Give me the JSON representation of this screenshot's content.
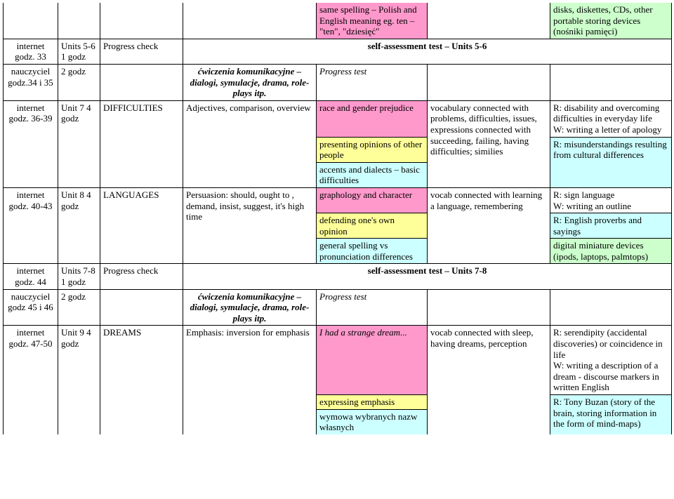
{
  "colors": {
    "pink": "#ff99cc",
    "yellow": "#ffff99",
    "blue": "#ccffff",
    "green": "#ccffcc"
  },
  "cells": {
    "r0_e": "same spelling – Polish and English meaning eg. ten – \"ten\", \"dziesięć\"",
    "r0_g": "disks, diskettes, CDs, other portable storing devices (nośniki pamięci)",
    "r1_a": "internet godz. 33",
    "r1_b": "Units 5-6 1 godz",
    "r1_c": "Progress check",
    "r1_center": "self-assessment test – Units 5-6",
    "r2_a": "nauczyciel godz.34 i 35",
    "r2_b": "2 godz",
    "r2_d": "ćwiczenia komunikacyjne – dialogi, symulacje, drama, role-plays itp.",
    "r2_e": "Progress test",
    "r3_a": "internet godz. 36-39",
    "r3_b": "Unit 7 4 godz",
    "r3_c": "DIFFICULTIES",
    "r3_d": "Adjectives, comparison, overview",
    "r3_e": "race and gender prejudice",
    "r3_f": "vocabulary connected with problems, difficulties, issues, expressions connected with succeeding, failing, having difficulties; similies",
    "r3_g": "R: disability and overcoming difficulties in everyday life\nW: writing a letter of apology",
    "r4_e": "presenting opinions of other people",
    "r4_g": "R: misunderstandings resulting from cultural differences",
    "r5_e": "accents and dialects – basic difficulties",
    "r6_a": "internet godz. 40-43",
    "r6_b": "Unit 8 4 godz",
    "r6_c": "LANGUAGES",
    "r6_d": "Persuasion: should, ought to , demand, insist, suggest, it's high time",
    "r6_e": "graphology and character",
    "r6_f": "vocab connected with learning a language, remembering",
    "r6_g1": "R: sign language\nW: writing an outline",
    "r7_e": "defending one's own opinion",
    "r7_g": "R: English proverbs and sayings",
    "r8_e": "general spelling vs pronunciation differences",
    "r8_g": "digital miniature devices (ipods, laptops, palmtops)",
    "r9_a": "internet godz. 44",
    "r9_b": "Units 7-8 1 godz",
    "r9_c": "Progress check",
    "r9_center": "self-assessment test – Units 7-8",
    "r10_a": "nauczyciel godz 45 i 46",
    "r10_b": "2 godz",
    "r10_d": "ćwiczenia komunikacyjne – dialogi, symulacje, drama, role-plays itp.",
    "r10_e": "Progress test",
    "r11_a": "internet godz. 47-50",
    "r11_b": "Unit 9 4 godz",
    "r11_c": "DREAMS",
    "r11_d": "Emphasis: inversion for emphasis",
    "r11_e": "I had a strange dream...",
    "r11_f": "vocab connected with sleep, having dreams, perception",
    "r11_g": "R: serendipity (accidental discoveries) or coincidence in life\nW: writing a description of a dream - discourse markers in written English",
    "r12_e": "expressing emphasis",
    "r12_g": "R: Tony Buzan (story of the brain, storing information in the form of mind-maps)",
    "r13_e": "wymowa wybranych nazw własnych"
  }
}
